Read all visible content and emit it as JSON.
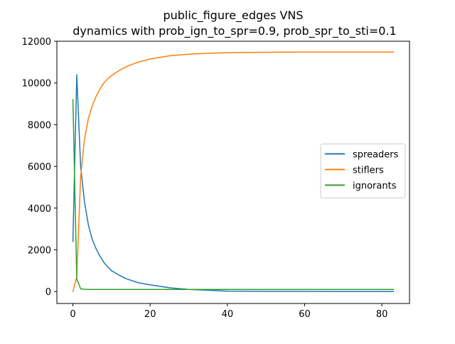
{
  "chart_data": {
    "type": "line",
    "title": "public_figure_edges VNS",
    "subtitle": "dynamics with prob_ign_to_spr=0.9, prob_spr_to_sti=0.1",
    "xlabel": "",
    "ylabel": "",
    "xlim": [
      -4.15,
      87.15
    ],
    "ylim": [
      -573,
      12000
    ],
    "xticks": [
      0,
      20,
      40,
      60,
      80
    ],
    "yticks": [
      0,
      2000,
      4000,
      6000,
      8000,
      10000,
      12000
    ],
    "grid": false,
    "legend_position": "center-right",
    "series": [
      {
        "name": "spreaders",
        "color": "#1f77b4",
        "x": [
          0,
          1,
          2,
          3,
          4,
          5,
          6,
          7,
          8,
          9,
          10,
          12,
          14,
          17,
          20,
          25,
          30,
          35,
          40,
          50,
          60,
          70,
          83
        ],
        "values": [
          2400,
          10400,
          6000,
          4300,
          3200,
          2500,
          2050,
          1700,
          1400,
          1180,
          1000,
          780,
          600,
          420,
          320,
          180,
          100,
          60,
          20,
          10,
          5,
          3,
          2
        ]
      },
      {
        "name": "stiflers",
        "color": "#ff7f0e",
        "x": [
          0,
          1,
          2,
          3,
          4,
          5,
          6,
          7,
          8,
          9,
          10,
          12,
          14,
          17,
          20,
          25,
          30,
          35,
          40,
          50,
          60,
          70,
          83
        ],
        "values": [
          0,
          700,
          5500,
          7300,
          8300,
          8900,
          9350,
          9700,
          10000,
          10200,
          10350,
          10600,
          10800,
          11000,
          11150,
          11300,
          11380,
          11420,
          11450,
          11470,
          11480,
          11480,
          11480
        ]
      },
      {
        "name": "ignorants",
        "color": "#2ca02c",
        "x": [
          0,
          1,
          2,
          3,
          4,
          5,
          6,
          8,
          10,
          15,
          20,
          30,
          40,
          50,
          60,
          70,
          83
        ],
        "values": [
          9200,
          600,
          130,
          110,
          100,
          100,
          100,
          100,
          100,
          100,
          100,
          100,
          100,
          100,
          100,
          100,
          100
        ]
      }
    ]
  }
}
